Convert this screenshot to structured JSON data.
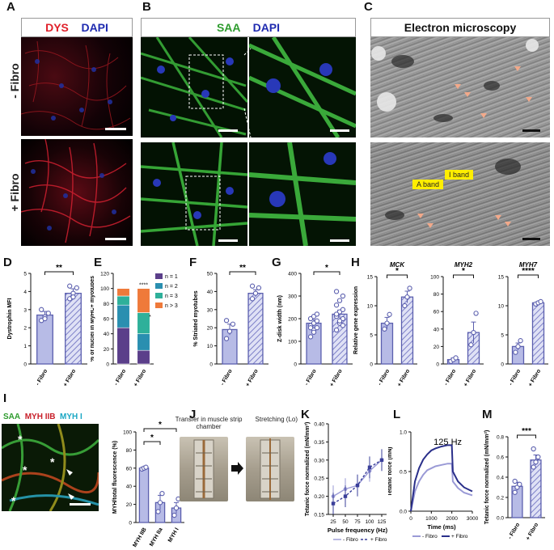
{
  "panels": {
    "A": {
      "label": "A",
      "stains": [
        "DYS",
        "DAPI"
      ],
      "colors": {
        "DYS": "#e0202a",
        "DAPI": "#1f2bb0"
      }
    },
    "B": {
      "label": "B",
      "stains": [
        "SAA",
        "DAPI"
      ],
      "colors": {
        "SAA": "#2e9c2e",
        "DAPI": "#1f2bb0"
      }
    },
    "C": {
      "label": "C",
      "title": "Electron microscopy",
      "bands": [
        "A band",
        "I band"
      ]
    },
    "rows": [
      "- Fibro",
      "+ Fibro"
    ],
    "D": {
      "label": "D"
    },
    "E": {
      "label": "E"
    },
    "F": {
      "label": "F"
    },
    "G": {
      "label": "G"
    },
    "H": {
      "label": "H"
    },
    "I": {
      "label": "I",
      "stains": [
        "SAA",
        "MYH IIB",
        "MYH I"
      ],
      "colors": {
        "SAA": "#2e9c2e",
        "MYH IIB": "#c8202a",
        "MYH I": "#1aa7c4"
      }
    },
    "J": {
      "label": "J",
      "step1": "Transfer in muscle strip chamber",
      "step2": "Stretching (Lo)"
    },
    "K": {
      "label": "K"
    },
    "L": {
      "label": "L",
      "annotation": "125 Hz"
    },
    "M": {
      "label": "M"
    }
  },
  "chart_data": [
    {
      "id": "D",
      "type": "bar",
      "ylabel": "Dystrophin MFI",
      "categories": [
        "- Fibro",
        "+ Fibro"
      ],
      "values": [
        2.7,
        3.9
      ],
      "errors": [
        0.2,
        0.25
      ],
      "ylim": [
        0,
        5
      ],
      "yticks": [
        "0",
        "1",
        "2",
        "3",
        "4",
        "5"
      ],
      "sig": "**",
      "points": [
        [
          2.4,
          2.6,
          2.8,
          3.0,
          2.5
        ],
        [
          3.6,
          3.9,
          4.2,
          4.3,
          3.7
        ]
      ]
    },
    {
      "id": "E",
      "type": "bar",
      "ylabel": "% of nuclei in MyHC+ myotubes",
      "categories": [
        "- Fibro",
        "+ Fibro"
      ],
      "ylim": [
        0,
        120
      ],
      "yticks": [
        "0",
        "20",
        "40",
        "60",
        "80",
        "100",
        "120"
      ],
      "series": [
        {
          "name": "n = 1",
          "values": [
            48,
            18
          ],
          "color": "#5b3f8a"
        },
        {
          "name": "n = 2",
          "values": [
            30,
            22
          ],
          "color": "#2a8fb0"
        },
        {
          "name": "n = 3",
          "values": [
            12,
            28
          ],
          "color": "#2eb09a"
        },
        {
          "name": "n > 3",
          "values": [
            10,
            32
          ],
          "color": "#ef7a3a"
        }
      ],
      "annotations": [
        "****",
        "*"
      ]
    },
    {
      "id": "F",
      "type": "bar",
      "ylabel": "% Striated myotubes",
      "categories": [
        "- Fibro",
        "+ Fibro"
      ],
      "values": [
        19,
        39
      ],
      "errors": [
        3,
        2
      ],
      "ylim": [
        0,
        50
      ],
      "yticks": [
        "0",
        "10",
        "20",
        "30",
        "40",
        "50"
      ],
      "sig": "**",
      "points": [
        [
          14,
          18,
          22,
          24
        ],
        [
          36,
          39,
          42,
          43
        ]
      ]
    },
    {
      "id": "G",
      "type": "bar",
      "ylabel": "Z-disk width (nm)",
      "categories": [
        "- Fibro",
        "+ Fibro"
      ],
      "values": [
        180,
        220
      ],
      "errors": [
        15,
        18
      ],
      "ylim": [
        0,
        400
      ],
      "yticks": [
        "0",
        "100",
        "200",
        "300",
        "400"
      ],
      "sig": "*",
      "points": [
        [
          120,
          150,
          160,
          170,
          180,
          190,
          200,
          210,
          220,
          160,
          140
        ],
        [
          150,
          180,
          200,
          210,
          230,
          240,
          260,
          280,
          300,
          320,
          190,
          170,
          220
        ]
      ]
    },
    {
      "id": "H1",
      "type": "bar",
      "title": "MCK",
      "ylabel": "Relative gene expression",
      "categories": [
        "- Fibro",
        "+ Fibro"
      ],
      "values": [
        7,
        11.5
      ],
      "errors": [
        1,
        1
      ],
      "ylim": [
        0,
        15
      ],
      "yticks": [
        "0",
        "5",
        "10",
        "15"
      ],
      "sig": "*",
      "points": [
        [
          6,
          7,
          8.5
        ],
        [
          10,
          11.5,
          13
        ]
      ]
    },
    {
      "id": "H2",
      "type": "bar",
      "title": "MYH2",
      "categories": [
        "- Fibro",
        "+ Fibro"
      ],
      "values": [
        5,
        36
      ],
      "errors": [
        2,
        12
      ],
      "ylim": [
        0,
        100
      ],
      "yticks": [
        "0",
        "20",
        "40",
        "60",
        "80",
        "100"
      ],
      "sig": "*",
      "points": [
        [
          3,
          5,
          7
        ],
        [
          22,
          36,
          58
        ]
      ]
    },
    {
      "id": "H3",
      "type": "bar",
      "title": "MYH7",
      "categories": [
        "- Fibro",
        "+ Fibro"
      ],
      "values": [
        3,
        10.5
      ],
      "errors": [
        0.6,
        0.2
      ],
      "ylim": [
        0,
        15
      ],
      "yticks": [
        "0",
        "5",
        "10",
        "15"
      ],
      "sig": "****",
      "points": [
        [
          2,
          3,
          4
        ],
        [
          10.3,
          10.5,
          10.7
        ]
      ]
    },
    {
      "id": "I",
      "type": "bar",
      "ylabel": "MYH/total fluorescence (%)",
      "categories": [
        "MYH IIB",
        "MYH IIa",
        "MYH I"
      ],
      "values": [
        60,
        22,
        16
      ],
      "errors": [
        1,
        8,
        6
      ],
      "ylim": [
        0,
        100
      ],
      "yticks": [
        "0",
        "20",
        "40",
        "60",
        "80",
        "100"
      ],
      "sig": [
        "*",
        "*"
      ],
      "points": [
        [
          59,
          60,
          61
        ],
        [
          12,
          22,
          32
        ],
        [
          8,
          16,
          26
        ]
      ]
    },
    {
      "id": "K",
      "type": "line",
      "ylabel": "Tetanic force normalized (mN/mm²)",
      "xlabel": "Pulse frequency (Hz)",
      "x": [
        25,
        50,
        75,
        100,
        125
      ],
      "xticks": [
        "25",
        "50",
        "75",
        "100",
        "125"
      ],
      "ylim": [
        0.15,
        0.4
      ],
      "yticks": [
        "0.15",
        "0.20",
        "0.25",
        "0.30",
        "0.35",
        "0.40"
      ],
      "series": [
        {
          "name": "- Fibro",
          "values": [
            0.2,
            0.22,
            0.23,
            0.27,
            0.3
          ],
          "color": "#9a9ad6"
        },
        {
          "name": "+ Fibro",
          "values": [
            0.18,
            0.2,
            0.23,
            0.28,
            0.3
          ],
          "color": "#3a3f9a"
        }
      ]
    },
    {
      "id": "L",
      "type": "line",
      "ylabel": "Tetanic force (mN)",
      "xlabel": "Time (ms)",
      "xticks": [
        "0",
        "1000",
        "2000",
        "3000"
      ],
      "xlim": [
        0,
        3000
      ],
      "ylim": [
        0,
        1.2
      ],
      "yticks": [
        "0.0",
        "0.5",
        "1.0"
      ],
      "annotation": "125 Hz",
      "series": [
        {
          "name": "- Fibro",
          "color": "#9a9ad6",
          "x": [
            0,
            200,
            400,
            600,
            800,
            1000,
            1200,
            1500,
            1800,
            2000,
            2050,
            2300,
            2600,
            3000
          ],
          "values": [
            0,
            0.3,
            0.45,
            0.55,
            0.62,
            0.65,
            0.68,
            0.7,
            0.72,
            0.72,
            0.45,
            0.35,
            0.28,
            0.24
          ]
        },
        {
          "name": "+ Fibro",
          "color": "#2a2f8a",
          "x": [
            0,
            200,
            400,
            600,
            800,
            1000,
            1200,
            1500,
            1800,
            2000,
            2050,
            2300,
            2600,
            3000
          ],
          "values": [
            0,
            0.45,
            0.65,
            0.78,
            0.86,
            0.92,
            0.95,
            0.98,
            1.0,
            1.0,
            0.6,
            0.45,
            0.36,
            0.3
          ]
        }
      ]
    },
    {
      "id": "M",
      "type": "bar",
      "ylabel": "Tetanic force normalized (mN/mm²)",
      "categories": [
        "- Fibro",
        "+ Fibro"
      ],
      "values": [
        0.31,
        0.57
      ],
      "errors": [
        0.04,
        0.05
      ],
      "ylim": [
        0,
        0.8
      ],
      "yticks": [
        "0.0",
        "0.2",
        "0.4",
        "0.6",
        "0.8"
      ],
      "sig": "***",
      "points": [
        [
          0.25,
          0.3,
          0.33,
          0.36
        ],
        [
          0.5,
          0.55,
          0.6,
          0.68
        ]
      ]
    }
  ]
}
